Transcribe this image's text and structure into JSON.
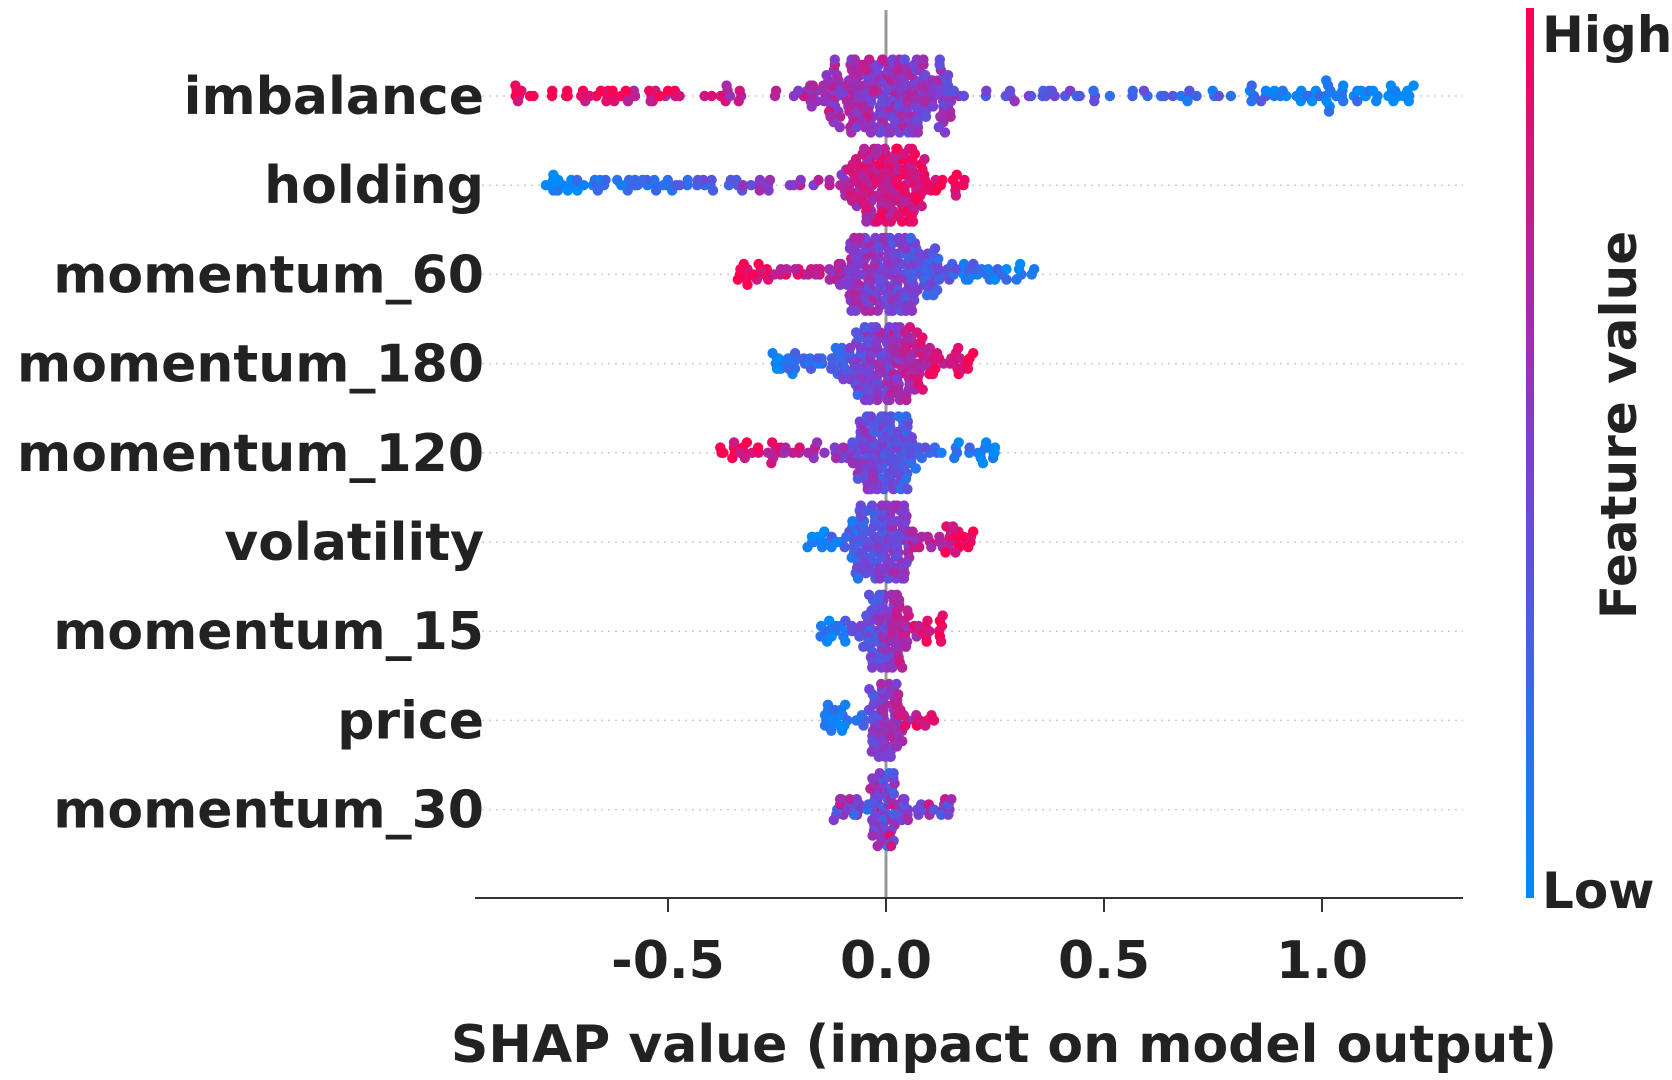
{
  "chart_data": {
    "type": "scatter",
    "subtype": "shap-beeswarm",
    "title": "",
    "xlabel": "SHAP value (impact on model output)",
    "ylabel": "",
    "xlim": [
      -0.95,
      1.3
    ],
    "xticks": [
      -0.5,
      0.0,
      0.5,
      1.0
    ],
    "xtick_labels": [
      "-0.5",
      "0.0",
      "0.5",
      "1.0"
    ],
    "features": [
      {
        "name": "imbalance",
        "min": -0.85,
        "max": 1.21,
        "high_side": "negative",
        "spread": 0.22
      },
      {
        "name": "holding",
        "min": -0.78,
        "max": 0.18,
        "high_side": "positive",
        "spread": 0.1
      },
      {
        "name": "momentum_60",
        "min": -0.34,
        "max": 0.34,
        "high_side": "negative",
        "spread": 0.14
      },
      {
        "name": "momentum_180",
        "min": -0.26,
        "max": 0.2,
        "high_side": "positive",
        "spread": 0.1
      },
      {
        "name": "momentum_120",
        "min": -0.38,
        "max": 0.25,
        "high_side": "negative",
        "spread": 0.08
      },
      {
        "name": "volatility",
        "min": -0.18,
        "max": 0.2,
        "high_side": "positive",
        "spread": 0.07
      },
      {
        "name": "momentum_15",
        "min": -0.15,
        "max": 0.13,
        "high_side": "positive",
        "spread": 0.04
      },
      {
        "name": "price",
        "min": -0.14,
        "max": 0.11,
        "high_side": "positive",
        "spread": 0.03
      },
      {
        "name": "momentum_30",
        "min": -0.12,
        "max": 0.15,
        "high_side": "mixed",
        "spread": 0.03
      }
    ],
    "colorbar": {
      "title": "Feature value",
      "high_label": "High",
      "low_label": "Low",
      "high_color": "#ff0051",
      "mid_color": "#7b3fd3",
      "low_color": "#008bfb"
    }
  }
}
